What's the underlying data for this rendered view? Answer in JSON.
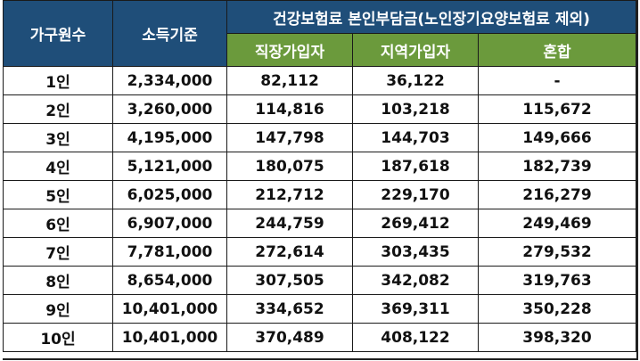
{
  "header": {
    "household_label": "가구원수",
    "income_label": "소득기준",
    "premium_label": "건강보험료 본인부담금(노인장기요양보험료 제외)",
    "employee_label": "직장가입자",
    "regional_label": "지역가입자",
    "mixed_label": "혼합"
  },
  "colors": {
    "header_navy": "#1f4e79",
    "header_green": "#6b9a3c"
  },
  "rows": [
    {
      "household": "1인",
      "income": "2,334,000",
      "employee": "82,112",
      "regional": "36,122",
      "mixed": "-"
    },
    {
      "household": "2인",
      "income": "3,260,000",
      "employee": "114,816",
      "regional": "103,218",
      "mixed": "115,672"
    },
    {
      "household": "3인",
      "income": "4,195,000",
      "employee": "147,798",
      "regional": "144,703",
      "mixed": "149,666"
    },
    {
      "household": "4인",
      "income": "5,121,000",
      "employee": "180,075",
      "regional": "187,618",
      "mixed": "182,739"
    },
    {
      "household": "5인",
      "income": "6,025,000",
      "employee": "212,712",
      "regional": "229,170",
      "mixed": "216,279"
    },
    {
      "household": "6인",
      "income": "6,907,000",
      "employee": "244,759",
      "regional": "269,412",
      "mixed": "249,469"
    },
    {
      "household": "7인",
      "income": "7,781,000",
      "employee": "272,614",
      "regional": "303,435",
      "mixed": "279,532"
    },
    {
      "household": "8인",
      "income": "8,654,000",
      "employee": "307,505",
      "regional": "342,082",
      "mixed": "319,763"
    },
    {
      "household": "9인",
      "income": "10,401,000",
      "employee": "334,652",
      "regional": "369,311",
      "mixed": "350,228"
    },
    {
      "household": "10인",
      "income": "10,401,000",
      "employee": "370,489",
      "regional": "408,122",
      "mixed": "398,320"
    }
  ]
}
